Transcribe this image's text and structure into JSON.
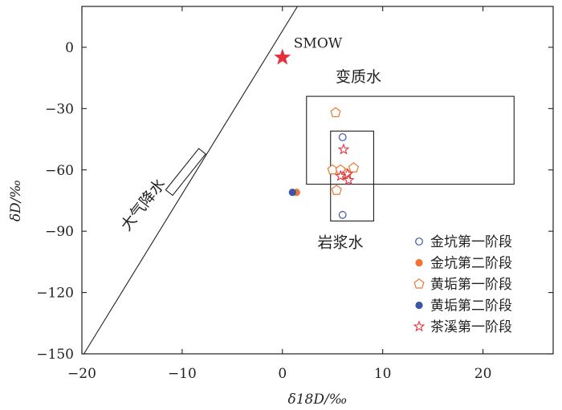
{
  "chart_data": {
    "type": "scatter",
    "xlabel": "δ18D/‰",
    "ylabel": "δD/‰",
    "xlim": [
      -20,
      27
    ],
    "ylim": [
      -150,
      20
    ],
    "xticks": [
      -20,
      -10,
      0,
      10,
      20
    ],
    "xtick_labels": [
      "−20",
      "−10",
      "0",
      "10",
      "20"
    ],
    "yticks": [
      0,
      -30,
      -60,
      -90,
      -120,
      -150
    ],
    "ytick_labels": [
      "0",
      "−30",
      "−60",
      "−90",
      "−120",
      "−150"
    ],
    "grid": false,
    "legend_position": "bottom-right",
    "lines": [
      {
        "label": "大气降水",
        "points": [
          [
            -19.8,
            -150
          ],
          [
            1.5,
            20
          ]
        ]
      }
    ],
    "regions": [
      {
        "label": "变质水",
        "x": [
          2.4,
          23.1
        ],
        "y": [
          -67,
          -24
        ]
      },
      {
        "label": "岩浆水",
        "x": [
          4.8,
          9.1
        ],
        "y": [
          -85,
          -41
        ]
      },
      {
        "label": "",
        "x": [
          -10.5,
          -8.8
        ],
        "y": [
          -73,
          -49
        ],
        "angle": 38.6
      }
    ],
    "reference_points": [
      {
        "label": "SMOW",
        "x": 0,
        "y": -5
      }
    ],
    "series": [
      {
        "name": "金坑第一阶段",
        "marker": "circle-open",
        "color": "#3a56a6",
        "points": [
          [
            6.0,
            -44
          ],
          [
            6.0,
            -82
          ]
        ]
      },
      {
        "name": "金坑第二阶段",
        "marker": "circle-filled",
        "color": "#ee7633",
        "points": [
          [
            1.4,
            -71
          ]
        ]
      },
      {
        "name": "黄垢第一阶段",
        "marker": "pentagon-open",
        "color": "#ee7633",
        "points": [
          [
            5.3,
            -32
          ],
          [
            5.0,
            -60
          ],
          [
            5.8,
            -60
          ],
          [
            7.1,
            -59
          ],
          [
            5.4,
            -70
          ],
          [
            6.4,
            -62
          ]
        ]
      },
      {
        "name": "黄垢第二阶段",
        "marker": "circle-filled",
        "color": "#3a56a6",
        "points": [
          [
            1.0,
            -71
          ]
        ]
      },
      {
        "name": "茶溪第一阶段",
        "marker": "star-open",
        "color": "#e3323b",
        "points": [
          [
            6.1,
            -50
          ],
          [
            5.8,
            -63
          ],
          [
            6.5,
            -62
          ],
          [
            6.6,
            -65
          ]
        ]
      }
    ]
  }
}
